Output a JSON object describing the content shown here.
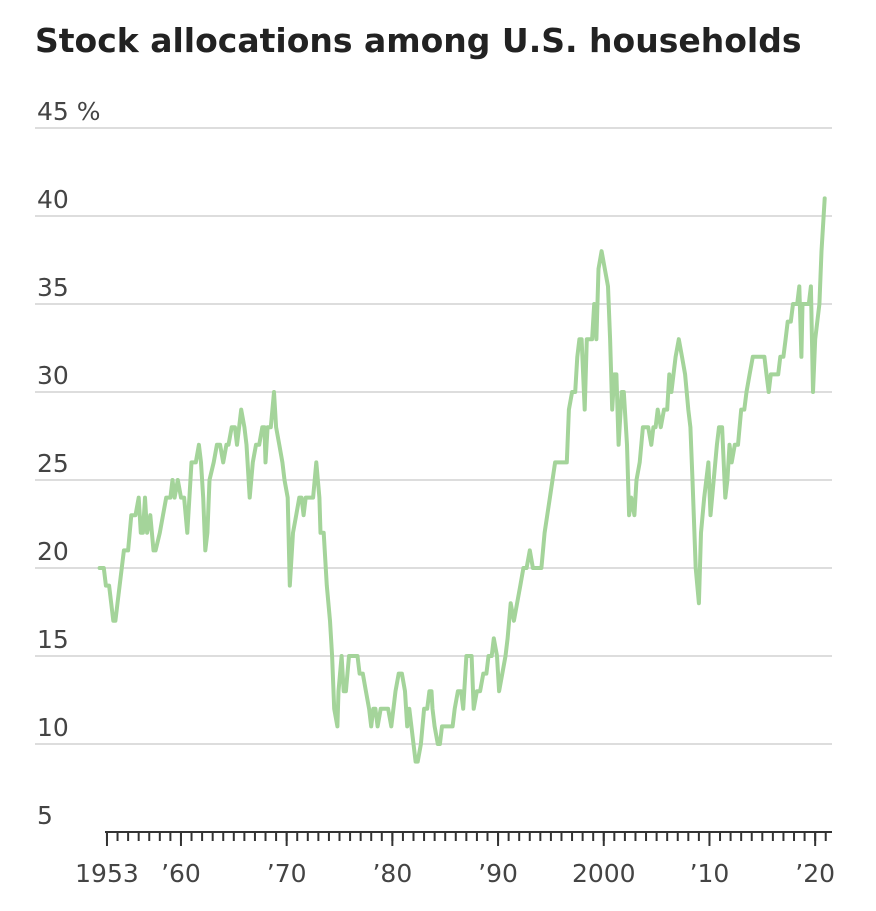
{
  "chart_data": {
    "type": "line",
    "title": "Stock allocations among U.S. households",
    "color": "#a4d49a",
    "grid": true,
    "xlim": [
      1952,
      2022
    ],
    "ylim": [
      5,
      45
    ],
    "yticks": [
      5,
      10,
      15,
      20,
      25,
      30,
      35,
      {
        "value": 45,
        "label": "45 %"
      },
      40
    ],
    "xticks": [
      1953,
      {
        "value": 1960,
        "label": "’60"
      },
      {
        "value": 1970,
        "label": "’70"
      },
      {
        "value": 1980,
        "label": "’80"
      },
      {
        "value": 1990,
        "label": "’90"
      },
      2000,
      {
        "value": 2010,
        "label": "’10"
      },
      {
        "value": 2020,
        "label": "’20"
      }
    ],
    "xminor": [
      1953,
      1954,
      1955,
      1956,
      1957,
      1958,
      1959,
      1960,
      1961,
      1962,
      1963,
      1964,
      1965,
      1966,
      1967,
      1968,
      1969,
      1970,
      1971,
      1972,
      1973,
      1974,
      1975,
      1976,
      1977,
      1978,
      1979,
      1980,
      1981,
      1982,
      1983,
      1984,
      1985,
      1986,
      1987,
      1988,
      1989,
      1990,
      1991,
      1992,
      1993,
      1994,
      1995,
      1996,
      1997,
      1998,
      1999,
      2000,
      2001,
      2002,
      2003,
      2004,
      2005,
      2006,
      2007,
      2008,
      2009,
      2010,
      2011,
      2012,
      2013,
      2014,
      2015,
      2016,
      2017,
      2018,
      2019,
      2020,
      2021
    ],
    "x": [
      1952.3,
      1952.7,
      1952.9,
      1953.2,
      1953.4,
      1953.6,
      1953.8,
      1954.0,
      1954.3,
      1954.6,
      1955.0,
      1955.3,
      1955.7,
      1956.0,
      1956.2,
      1956.4,
      1956.6,
      1956.8,
      1957.1,
      1957.4,
      1957.6,
      1958.0,
      1958.3,
      1958.6,
      1959.0,
      1959.2,
      1959.4,
      1959.7,
      1960.0,
      1960.3,
      1960.6,
      1960.8,
      1961.0,
      1961.4,
      1961.7,
      1961.9,
      1962.1,
      1962.3,
      1962.5,
      1962.7,
      1963.1,
      1963.4,
      1963.7,
      1964.0,
      1964.3,
      1964.5,
      1964.8,
      1965.1,
      1965.3,
      1965.7,
      1966.0,
      1966.2,
      1966.5,
      1966.8,
      1967.1,
      1967.4,
      1967.7,
      1967.9,
      1968.0,
      1968.2,
      1968.5,
      1968.8,
      1969.0,
      1969.3,
      1969.6,
      1969.8,
      1970.1,
      1970.3,
      1970.6,
      1970.9,
      1971.2,
      1971.4,
      1971.6,
      1971.8,
      1972.2,
      1972.5,
      1972.8,
      1973.1,
      1973.2,
      1973.5,
      1973.8,
      1974.1,
      1974.3,
      1974.5,
      1974.8,
      1974.9,
      1975.2,
      1975.4,
      1975.6,
      1975.9,
      1976.3,
      1976.7,
      1976.9,
      1977.2,
      1977.5,
      1977.8,
      1978.0,
      1978.2,
      1978.4,
      1978.6,
      1978.9,
      1979.3,
      1979.6,
      1979.9,
      1980.1,
      1980.3,
      1980.6,
      1980.9,
      1981.2,
      1981.4,
      1981.6,
      1981.8,
      1982.0,
      1982.2,
      1982.4,
      1982.7,
      1983.0,
      1983.3,
      1983.5,
      1983.7,
      1983.8,
      1984.0,
      1984.3,
      1984.5,
      1984.7,
      1985.1,
      1985.4,
      1985.7,
      1985.9,
      1986.2,
      1986.5,
      1986.7,
      1987.0,
      1987.2,
      1987.5,
      1987.7,
      1988.0,
      1988.3,
      1988.6,
      1988.9,
      1989.1,
      1989.4,
      1989.6,
      1989.9,
      1990.1,
      1990.4,
      1990.7,
      1990.9,
      1991.2,
      1991.5,
      1991.8,
      1992.1,
      1992.4,
      1992.7,
      1993.0,
      1993.3,
      1993.7,
      1994.1,
      1994.4,
      1994.9,
      1995.4,
      1995.8,
      1996.2,
      1996.5,
      1996.7,
      1997.0,
      1997.3,
      1997.5,
      1997.7,
      1997.9,
      1998.2,
      1998.4,
      1998.6,
      1998.9,
      1999.1,
      1999.3,
      1999.5,
      1999.8,
      2000.1,
      2000.4,
      2000.6,
      2000.8,
      2001.0,
      2001.2,
      2001.4,
      2001.7,
      2001.9,
      2002.2,
      2002.4,
      2002.6,
      2002.9,
      2003.1,
      2003.4,
      2003.7,
      2004.0,
      2004.2,
      2004.5,
      2004.7,
      2004.9,
      2005.1,
      2005.4,
      2005.7,
      2006.0,
      2006.2,
      2006.4,
      2006.6,
      2006.8,
      2007.1,
      2007.4,
      2007.7,
      2008.0,
      2008.2,
      2008.4,
      2008.7,
      2009.0,
      2009.2,
      2009.5,
      2009.9,
      2010.1,
      2010.4,
      2010.7,
      2010.9,
      2011.2,
      2011.5,
      2011.7,
      2011.9,
      2012.1,
      2012.4,
      2012.7,
      2013.0,
      2013.3,
      2013.5,
      2013.8,
      2014.1,
      2014.5,
      2015.0,
      2015.2,
      2015.4,
      2015.6,
      2015.8,
      2016.2,
      2016.5,
      2016.7,
      2017.0,
      2017.2,
      2017.4,
      2017.7,
      2017.9,
      2018.3,
      2018.5,
      2018.7,
      2018.8,
      2019.1,
      2019.4,
      2019.6,
      2019.8,
      2020.0,
      2020.2,
      2020.4,
      2020.6,
      2020.9
    ],
    "values": [
      20,
      20,
      19,
      19,
      18,
      17,
      17,
      18,
      19.5,
      21,
      21,
      23,
      23,
      24,
      22,
      22,
      24,
      22,
      23,
      21,
      21,
      22,
      23,
      24,
      24,
      25,
      24,
      25,
      24,
      24,
      22,
      24,
      26,
      26,
      27,
      26,
      24,
      21,
      22,
      25,
      26,
      27,
      27,
      26,
      27,
      27,
      28,
      28,
      27,
      29,
      28,
      27,
      24,
      26,
      27,
      27,
      28,
      28,
      26,
      28,
      28,
      30,
      28,
      27,
      26,
      25,
      24,
      19,
      22,
      23,
      24,
      24,
      23,
      24,
      24,
      24,
      26,
      24,
      22,
      22,
      19,
      17,
      15,
      12,
      11,
      13,
      15,
      13,
      13,
      15,
      15,
      15,
      14,
      14,
      13,
      12,
      11,
      12,
      12,
      11,
      12,
      12,
      12,
      11,
      12,
      13,
      14,
      14,
      13,
      11,
      12,
      11,
      10,
      9,
      9,
      10,
      12,
      12,
      13,
      13,
      12,
      11,
      10,
      10,
      11,
      11,
      11,
      11,
      12,
      13,
      13,
      12,
      15,
      15,
      15,
      12,
      13,
      13,
      14,
      14,
      15,
      15,
      16,
      15,
      13,
      14,
      15,
      16,
      18,
      17,
      18,
      19,
      20,
      20,
      21,
      20,
      20,
      20,
      22,
      24,
      26,
      26,
      26,
      26,
      29,
      30,
      30,
      32,
      33,
      33,
      29,
      33,
      33,
      33,
      35,
      33,
      37,
      38,
      37,
      36,
      33,
      29,
      31,
      31,
      27,
      30,
      30,
      27,
      23,
      24,
      23,
      25,
      26,
      28,
      28,
      28,
      27,
      28,
      28,
      29,
      28,
      29,
      29,
      31,
      30,
      31,
      32,
      33,
      32,
      31,
      29,
      28,
      25,
      20,
      18,
      22,
      24,
      26,
      23,
      25,
      27,
      28,
      28,
      24,
      25,
      27,
      26,
      27,
      27,
      29,
      29,
      30,
      31,
      32,
      32,
      32,
      32,
      31,
      30,
      31,
      31,
      31,
      32,
      32,
      33,
      34,
      34,
      35,
      35,
      36,
      32,
      35,
      35,
      35,
      36,
      30,
      33,
      34,
      35,
      38,
      41
    ]
  }
}
